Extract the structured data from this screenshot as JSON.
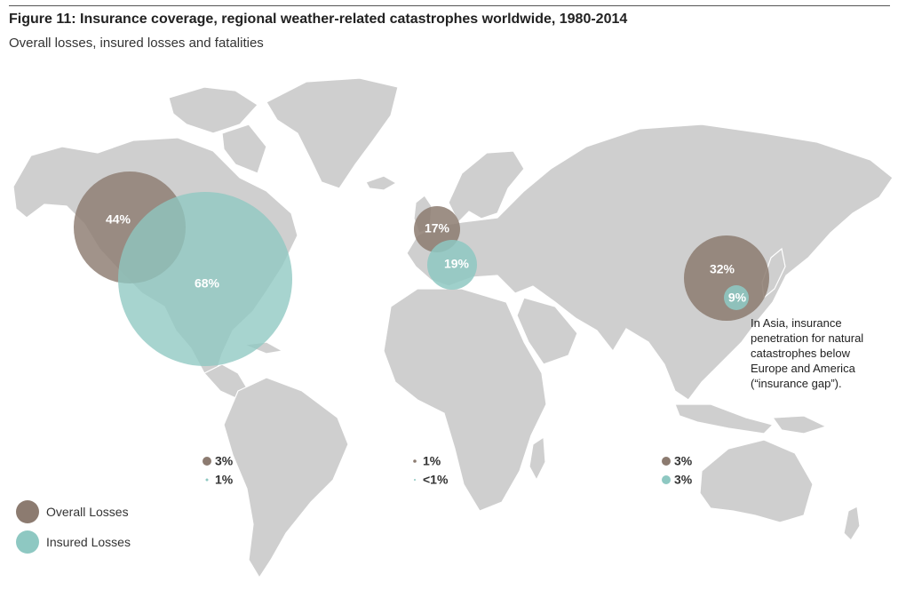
{
  "title": "Figure 11: Insurance coverage, regional weather-related catastrophes worldwide, 1980-2014",
  "subtitle": "Overall losses, insured losses and fatalities",
  "colors": {
    "overall": "#8c7b70",
    "insured": "#8ec8c2",
    "land": "#cfcfcf"
  },
  "legend": {
    "overall_label": "Overall Losses",
    "insured_label": "Insured Losses"
  },
  "annotation": {
    "line1": "In Asia, insurance",
    "line2": "penetration for natural",
    "line3": "catastrophes below",
    "line4": "Europe and America",
    "line5": "(“insurance gap”)."
  },
  "chart_data": {
    "type": "bubble-map",
    "regions": [
      {
        "region": "North America",
        "overall_losses": "44%",
        "insured_losses": "68%"
      },
      {
        "region": "Europe",
        "overall_losses": "17%",
        "insured_losses": "19%"
      },
      {
        "region": "Asia",
        "overall_losses": "32%",
        "insured_losses": "9%"
      },
      {
        "region": "South America",
        "overall_losses": "3%",
        "insured_losses": "1%"
      },
      {
        "region": "Africa",
        "overall_losses": "1%",
        "insured_losses": "<1%"
      },
      {
        "region": "Oceania",
        "overall_losses": "3%",
        "insured_losses": "3%"
      }
    ]
  }
}
